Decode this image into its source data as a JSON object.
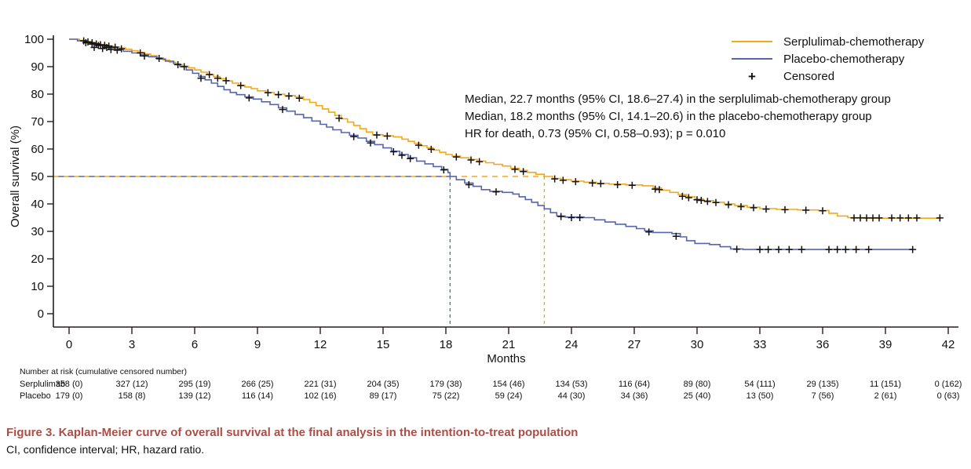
{
  "colors": {
    "serplulimab_line": "#F3A71B",
    "placebo_line": "#5566AE",
    "axis": "#231F20",
    "censor_mark": "#111111",
    "caption_red": "#AE4C45"
  },
  "figure": {
    "caption": "Figure 3.  Kaplan-Meier curve of overall survival at the final analysis in the intention-to-treat population",
    "footnote": "CI, confidence interval; HR, hazard ratio."
  },
  "chart_data": {
    "type": "line",
    "subtype": "kaplan-meier-step",
    "xlabel": "Months",
    "ylabel": "Overall survival (%)",
    "xlim": [
      0,
      42
    ],
    "ylim": [
      0,
      100
    ],
    "xticks": [
      0,
      3,
      6,
      9,
      12,
      15,
      18,
      21,
      24,
      27,
      30,
      33,
      36,
      39,
      42
    ],
    "yticks": [
      0,
      10,
      20,
      30,
      40,
      50,
      60,
      70,
      80,
      90,
      100
    ],
    "grid": false,
    "legend_position": "top-right",
    "legend": [
      {
        "label": "Serplulimab-chemotherapy",
        "color": "#F3A71B"
      },
      {
        "label": "Placebo-chemotherapy",
        "color": "#5566AE"
      },
      {
        "label": "Censored",
        "marker": "+"
      }
    ],
    "annotations": [
      "Median, 22.7 months (95% CI, 18.6–27.4) in the serplulimab-chemotherapy group",
      "Median, 18.2 months (95% CI, 14.1–20.6) in the placebo-chemotherapy group",
      "HR for death, 0.73 (95% CI, 0.58–0.93); p = 0.010"
    ],
    "reference_lines": {
      "survival_pct": 50,
      "median_serplulimab_months": 22.7,
      "median_placebo_months": 18.2
    },
    "hazard_ratio": "0.73 (95% CI, 0.58–0.93); p = 0.010",
    "series": [
      {
        "name": "Serplulimab-chemotherapy",
        "color": "#F3A71B",
        "median_months": 22.7,
        "ci95": "18.6–27.4",
        "steps": [
          [
            0,
            100
          ],
          [
            0.5,
            99.6
          ],
          [
            0.8,
            99.2
          ],
          [
            1.0,
            98.8
          ],
          [
            1.2,
            98.4
          ],
          [
            1.5,
            98
          ],
          [
            1.8,
            97.6
          ],
          [
            2.1,
            97.2
          ],
          [
            2.4,
            96.8
          ],
          [
            2.7,
            96.3
          ],
          [
            3.0,
            95.8
          ],
          [
            3.3,
            95.2
          ],
          [
            3.6,
            94.6
          ],
          [
            3.9,
            94
          ],
          [
            4.2,
            93.2
          ],
          [
            4.5,
            92.4
          ],
          [
            4.8,
            91.6
          ],
          [
            5.1,
            90.8
          ],
          [
            5.4,
            90.2
          ],
          [
            5.7,
            89.6
          ],
          [
            6.0,
            88.8
          ],
          [
            6.3,
            88
          ],
          [
            6.6,
            87.2
          ],
          [
            6.9,
            86.4
          ],
          [
            7.2,
            85.6
          ],
          [
            7.5,
            84.8
          ],
          [
            7.8,
            84
          ],
          [
            8.1,
            83.2
          ],
          [
            8.4,
            82.6
          ],
          [
            8.7,
            82
          ],
          [
            9.0,
            81.2
          ],
          [
            9.4,
            80.6
          ],
          [
            9.8,
            80
          ],
          [
            10.3,
            79.5
          ],
          [
            10.8,
            79
          ],
          [
            11.2,
            78
          ],
          [
            11.5,
            77
          ],
          [
            11.8,
            75.8
          ],
          [
            12.1,
            74.6
          ],
          [
            12.4,
            73.4
          ],
          [
            12.7,
            72.2
          ],
          [
            13.0,
            71
          ],
          [
            13.3,
            69.8
          ],
          [
            13.6,
            68.6
          ],
          [
            13.9,
            67.4
          ],
          [
            14.2,
            66.2
          ],
          [
            14.5,
            65.2
          ],
          [
            15.0,
            64.8
          ],
          [
            15.5,
            64.4
          ],
          [
            15.9,
            63.6
          ],
          [
            16.2,
            62.8
          ],
          [
            16.5,
            62
          ],
          [
            16.8,
            61.2
          ],
          [
            17.1,
            60.4
          ],
          [
            17.4,
            59.6
          ],
          [
            17.7,
            58.8
          ],
          [
            18.0,
            58
          ],
          [
            18.3,
            57.4
          ],
          [
            18.7,
            56.8
          ],
          [
            19.1,
            56.2
          ],
          [
            19.5,
            55.6
          ],
          [
            19.9,
            55
          ],
          [
            20.3,
            54.4
          ],
          [
            20.7,
            53.8
          ],
          [
            21.1,
            53
          ],
          [
            21.5,
            52.2
          ],
          [
            21.9,
            51.5
          ],
          [
            22.3,
            50.8
          ],
          [
            22.7,
            50
          ],
          [
            23.1,
            49.3
          ],
          [
            23.5,
            48.8
          ],
          [
            24.0,
            48.3
          ],
          [
            24.6,
            47.9
          ],
          [
            25.2,
            47.5
          ],
          [
            25.8,
            47.2
          ],
          [
            26.6,
            46.9
          ],
          [
            27.4,
            46.6
          ],
          [
            27.9,
            45.8
          ],
          [
            28.3,
            45
          ],
          [
            28.7,
            44.2
          ],
          [
            29.1,
            43.4
          ],
          [
            29.5,
            42.6
          ],
          [
            29.9,
            41.8
          ],
          [
            30.3,
            41.2
          ],
          [
            30.8,
            40.6
          ],
          [
            31.3,
            40
          ],
          [
            31.8,
            39.4
          ],
          [
            32.4,
            38.8
          ],
          [
            33.0,
            38.3
          ],
          [
            33.8,
            38
          ],
          [
            34.8,
            37.8
          ],
          [
            35.8,
            37.6
          ],
          [
            36.3,
            36.6
          ],
          [
            36.7,
            35.6
          ],
          [
            37.2,
            35
          ],
          [
            38.0,
            34.8
          ],
          [
            41.6,
            34.8
          ]
        ],
        "censor_marks": [
          [
            0.7,
            99.4
          ],
          [
            0.9,
            99
          ],
          [
            1.1,
            98.7
          ],
          [
            1.3,
            98.3
          ],
          [
            1.5,
            98
          ],
          [
            1.7,
            97.8
          ],
          [
            1.9,
            97.5
          ],
          [
            2.2,
            97.1
          ],
          [
            1.2,
            97
          ],
          [
            1.6,
            96.6
          ],
          [
            2.0,
            96.2
          ],
          [
            2.5,
            96.5
          ],
          [
            3.4,
            95
          ],
          [
            4.3,
            93
          ],
          [
            5.2,
            90.7
          ],
          [
            5.5,
            90
          ],
          [
            6.7,
            87.1
          ],
          [
            7.1,
            85.8
          ],
          [
            7.5,
            84.9
          ],
          [
            8.2,
            83.1
          ],
          [
            9.5,
            80.5
          ],
          [
            10.0,
            79.8
          ],
          [
            10.5,
            79.3
          ],
          [
            11.0,
            78.5
          ],
          [
            12.9,
            71.2
          ],
          [
            14.7,
            65.1
          ],
          [
            15.2,
            64.7
          ],
          [
            16.7,
            61.4
          ],
          [
            17.3,
            59.9
          ],
          [
            18.5,
            57.1
          ],
          [
            19.2,
            56
          ],
          [
            19.6,
            55.4
          ],
          [
            21.3,
            52.6
          ],
          [
            21.7,
            51.8
          ],
          [
            23.2,
            49.1
          ],
          [
            23.6,
            48.6
          ],
          [
            24.2,
            48.1
          ],
          [
            25.0,
            47.6
          ],
          [
            25.4,
            47.4
          ],
          [
            26.2,
            47
          ],
          [
            26.9,
            46.8
          ],
          [
            28.0,
            45.4
          ],
          [
            28.2,
            45.2
          ],
          [
            29.3,
            42.8
          ],
          [
            29.6,
            42.3
          ],
          [
            30.0,
            41.5
          ],
          [
            30.2,
            41.3
          ],
          [
            30.5,
            40.9
          ],
          [
            30.9,
            40.5
          ],
          [
            31.5,
            39.7
          ],
          [
            32.1,
            39
          ],
          [
            32.7,
            38.6
          ],
          [
            33.3,
            38.1
          ],
          [
            34.2,
            37.9
          ],
          [
            35.2,
            37.7
          ],
          [
            36.0,
            37.5
          ],
          [
            37.5,
            34.9
          ],
          [
            37.8,
            34.9
          ],
          [
            38.1,
            34.9
          ],
          [
            38.4,
            34.9
          ],
          [
            38.7,
            34.9
          ],
          [
            39.3,
            34.9
          ],
          [
            39.7,
            34.9
          ],
          [
            40.1,
            34.9
          ],
          [
            40.5,
            34.9
          ],
          [
            41.6,
            34.9
          ]
        ]
      },
      {
        "name": "Placebo-chemotherapy",
        "color": "#5566AE",
        "median_months": 18.2,
        "ci95": "14.1–20.6",
        "steps": [
          [
            0,
            100
          ],
          [
            0.4,
            99.4
          ],
          [
            0.7,
            98.9
          ],
          [
            1.0,
            98.4
          ],
          [
            1.3,
            97.9
          ],
          [
            1.6,
            97.4
          ],
          [
            1.9,
            96.8
          ],
          [
            2.2,
            96.2
          ],
          [
            2.6,
            95.6
          ],
          [
            3.0,
            95
          ],
          [
            3.4,
            94.3
          ],
          [
            3.8,
            93.6
          ],
          [
            4.2,
            92.8
          ],
          [
            4.6,
            92
          ],
          [
            5.0,
            91
          ],
          [
            5.3,
            90
          ],
          [
            5.6,
            88.8
          ],
          [
            5.9,
            87.6
          ],
          [
            6.2,
            86.4
          ],
          [
            6.5,
            85.2
          ],
          [
            6.8,
            84
          ],
          [
            7.1,
            82.8
          ],
          [
            7.4,
            81.6
          ],
          [
            7.7,
            80.6
          ],
          [
            8.0,
            79.8
          ],
          [
            8.4,
            79
          ],
          [
            8.8,
            78.2
          ],
          [
            9.2,
            77.2
          ],
          [
            9.6,
            76.2
          ],
          [
            10.0,
            75
          ],
          [
            10.4,
            73.8
          ],
          [
            10.8,
            72.6
          ],
          [
            11.2,
            71.4
          ],
          [
            11.6,
            70.2
          ],
          [
            12.0,
            69
          ],
          [
            12.3,
            68
          ],
          [
            12.6,
            67
          ],
          [
            13.0,
            66
          ],
          [
            13.4,
            65
          ],
          [
            13.8,
            64
          ],
          [
            14.2,
            62.8
          ],
          [
            14.6,
            61.6
          ],
          [
            15.0,
            60.4
          ],
          [
            15.4,
            59.2
          ],
          [
            15.8,
            58
          ],
          [
            16.2,
            56.8
          ],
          [
            16.6,
            55.6
          ],
          [
            17.0,
            54.6
          ],
          [
            17.4,
            53.6
          ],
          [
            17.8,
            52.6
          ],
          [
            18.1,
            51.4
          ],
          [
            18.2,
            50
          ],
          [
            18.5,
            48.8
          ],
          [
            18.9,
            47.6
          ],
          [
            19.3,
            46.4
          ],
          [
            19.7,
            45.2
          ],
          [
            20.1,
            44.6
          ],
          [
            20.7,
            44.2
          ],
          [
            21.2,
            43.6
          ],
          [
            21.5,
            42.6
          ],
          [
            21.8,
            41.6
          ],
          [
            22.1,
            40.6
          ],
          [
            22.4,
            39.4
          ],
          [
            22.7,
            38.2
          ],
          [
            23.0,
            36.8
          ],
          [
            23.3,
            35.6
          ],
          [
            23.7,
            35.2
          ],
          [
            24.6,
            35
          ],
          [
            25.1,
            34.2
          ],
          [
            25.6,
            33.4
          ],
          [
            26.1,
            32.6
          ],
          [
            26.6,
            31.8
          ],
          [
            27.1,
            31
          ],
          [
            27.5,
            30.2
          ],
          [
            27.9,
            29.6
          ],
          [
            28.8,
            29.2
          ],
          [
            29.2,
            28
          ],
          [
            29.5,
            26.6
          ],
          [
            29.9,
            25.6
          ],
          [
            30.6,
            25.2
          ],
          [
            31.1,
            24.4
          ],
          [
            31.6,
            23.6
          ],
          [
            32.2,
            23.4
          ],
          [
            40.3,
            23.4
          ]
        ],
        "censor_marks": [
          [
            0.8,
            98.7
          ],
          [
            1.1,
            98.2
          ],
          [
            1.4,
            97.7
          ],
          [
            1.8,
            97
          ],
          [
            2.3,
            96
          ],
          [
            3.6,
            93.9
          ],
          [
            6.3,
            85.8
          ],
          [
            8.6,
            78.6
          ],
          [
            10.2,
            74.4
          ],
          [
            13.6,
            64.5
          ],
          [
            14.4,
            62.2
          ],
          [
            15.5,
            59
          ],
          [
            15.9,
            57.7
          ],
          [
            16.3,
            56.5
          ],
          [
            17.9,
            52.4
          ],
          [
            19.1,
            47
          ],
          [
            20.4,
            44.4
          ],
          [
            23.5,
            35.4
          ],
          [
            24.0,
            35
          ],
          [
            24.4,
            35
          ],
          [
            27.7,
            29.8
          ],
          [
            29.0,
            28.2
          ],
          [
            31.9,
            23.5
          ],
          [
            33.0,
            23.4
          ],
          [
            33.4,
            23.4
          ],
          [
            33.9,
            23.4
          ],
          [
            34.4,
            23.4
          ],
          [
            35.0,
            23.4
          ],
          [
            36.3,
            23.4
          ],
          [
            36.7,
            23.4
          ],
          [
            37.1,
            23.4
          ],
          [
            37.6,
            23.4
          ],
          [
            38.2,
            23.4
          ],
          [
            40.3,
            23.4
          ]
        ]
      }
    ]
  },
  "risk_table": {
    "header": "Number at risk (cumulative censored number)",
    "months": [
      0,
      3,
      6,
      9,
      12,
      15,
      18,
      21,
      24,
      27,
      30,
      33,
      36,
      39,
      42
    ],
    "rows": [
      {
        "label": "Serplulimab",
        "values": [
          "358 (0)",
          "327 (12)",
          "295 (19)",
          "266 (25)",
          "221 (31)",
          "204 (35)",
          "179 (38)",
          "154 (46)",
          "134 (53)",
          "116 (64)",
          "89 (80)",
          "54 (111)",
          "29 (135)",
          "11 (151)",
          "0 (162)"
        ]
      },
      {
        "label": "Placebo",
        "values": [
          "179 (0)",
          "158 (8)",
          "139 (12)",
          "116 (14)",
          "102 (16)",
          "89 (17)",
          "75 (22)",
          "59 (24)",
          "44 (30)",
          "34 (36)",
          "25 (40)",
          "13 (50)",
          "7 (56)",
          "2 (61)",
          "0 (63)"
        ]
      }
    ]
  }
}
